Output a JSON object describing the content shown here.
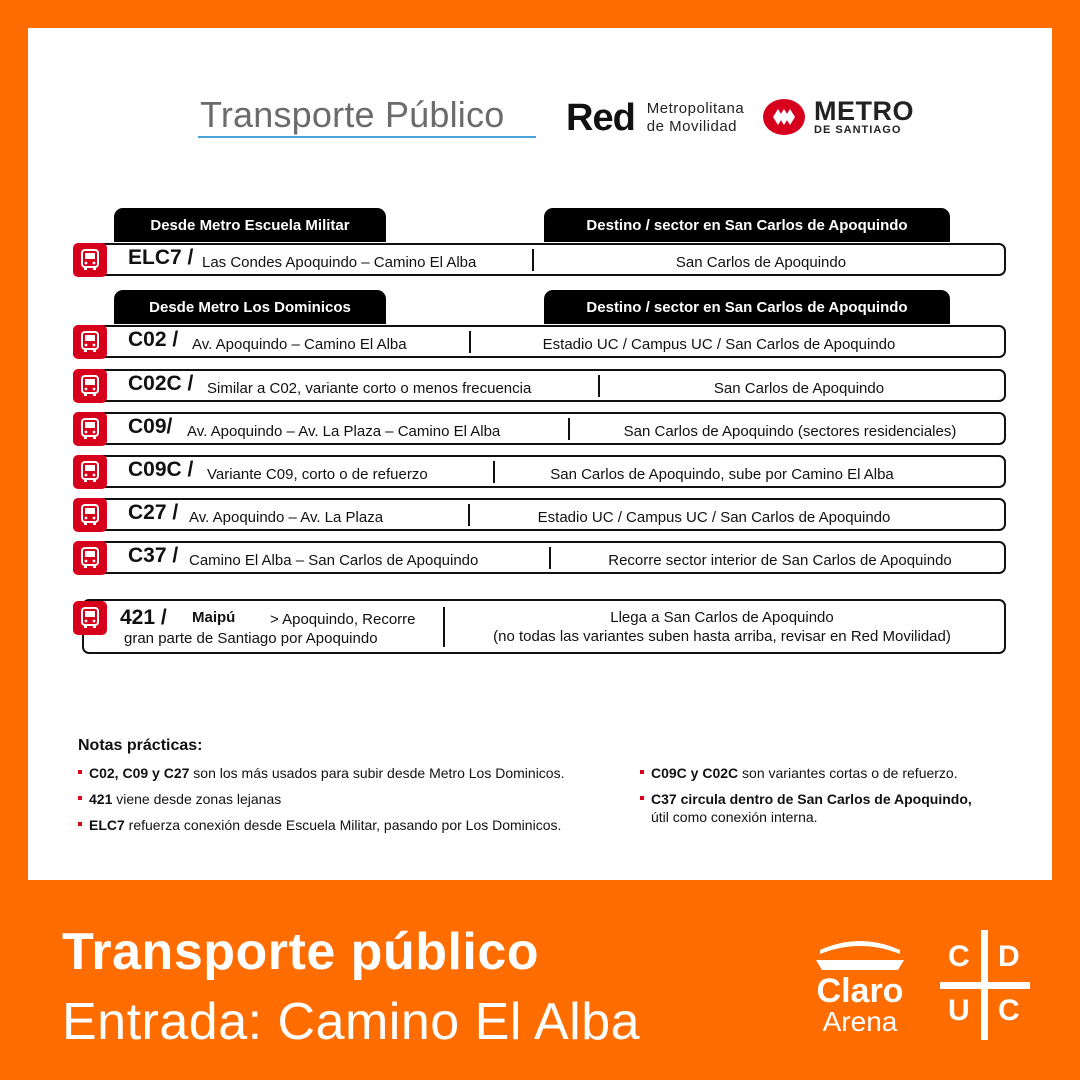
{
  "header": {
    "title": "Transporte Público",
    "red_logo": {
      "word": "Red",
      "sub_line1": "Metropolitana",
      "sub_line2": "de Movilidad"
    },
    "metro_logo": {
      "word": "METRO",
      "city": "DE SANTIAGO"
    }
  },
  "sections": {
    "escuela_militar": {
      "origin_tab": "Desde Metro Escuela Militar",
      "dest_tab": "Destino / sector en San Carlos de Apoquindo"
    },
    "los_dominicos": {
      "origin_tab": "Desde Metro Los Dominicos",
      "dest_tab": "Destino / sector en San Carlos de Apoquindo"
    }
  },
  "routes": [
    {
      "code": "ELC7 /",
      "desc": "Las Condes Apoquindo – Camino El Alba",
      "dest": "San Carlos de Apoquindo"
    },
    {
      "code": "C02 /",
      "desc": "Av. Apoquindo – Camino El Alba",
      "dest": "Estadio UC / Campus UC / San Carlos de Apoquindo"
    },
    {
      "code": "C02C /",
      "desc": "Similar a C02, variante corto o menos frecuencia",
      "dest": "San Carlos de Apoquindo"
    },
    {
      "code": "C09/",
      "desc": "Av. Apoquindo – Av. La Plaza – Camino El Alba",
      "dest": "San Carlos de Apoquindo (sectores residenciales)"
    },
    {
      "code": "C09C /",
      "desc": "Variante C09, corto o de refuerzo",
      "dest": "San Carlos de Apoquindo, sube por Camino El Alba"
    },
    {
      "code": "C27 /",
      "desc": "Av. Apoquindo – Av. La Plaza",
      "dest": "Estadio UC / Campus UC / San Carlos de Apoquindo"
    },
    {
      "code": "C37 /",
      "desc": "Camino El Alba – San Carlos de Apoquindo",
      "dest": "Recorre sector interior de San Carlos de Apoquindo"
    }
  ],
  "route_421": {
    "code": "421 /",
    "desc_a": "Maipú",
    "desc_b": "> Apoquindo, Recorre",
    "desc_c": "gran parte de Santiago por Apoquindo",
    "dest_line1": "Llega a San Carlos de Apoquindo",
    "dest_line2": "(no todas las variantes suben hasta arriba, revisar en Red Movilidad)"
  },
  "notes": {
    "title": "Notas prácticas:",
    "left": [
      {
        "bold": "C02, C09 y C27",
        "text": " son los más usados para subir desde Metro Los Dominicos."
      },
      {
        "bold": "421",
        "text": " viene desde zonas lejanas"
      },
      {
        "bold": "ELC7",
        "text": " refuerza conexión desde Escuela Militar, pasando por Los Dominicos."
      }
    ],
    "right": [
      {
        "bold": "C09C y C02C",
        "text": " son variantes cortas o de refuerzo."
      },
      {
        "bold": "C37 circula dentro de San Carlos de Apoquindo,",
        "text": "útil como conexión interna."
      }
    ]
  },
  "footer": {
    "line1": "Transporte público",
    "line2": "Entrada: Camino El Alba",
    "claro_logo": {
      "word": "Claro",
      "sub": "Arena"
    },
    "cduc_logo": {
      "c1": "C",
      "d": "D",
      "u": "U",
      "c2": "C"
    }
  },
  "colors": {
    "background": "#ff6d00",
    "accent_red": "#d6001c",
    "underline_blue": "#4aa6d8"
  },
  "icons": {
    "bus": "bus-icon"
  }
}
